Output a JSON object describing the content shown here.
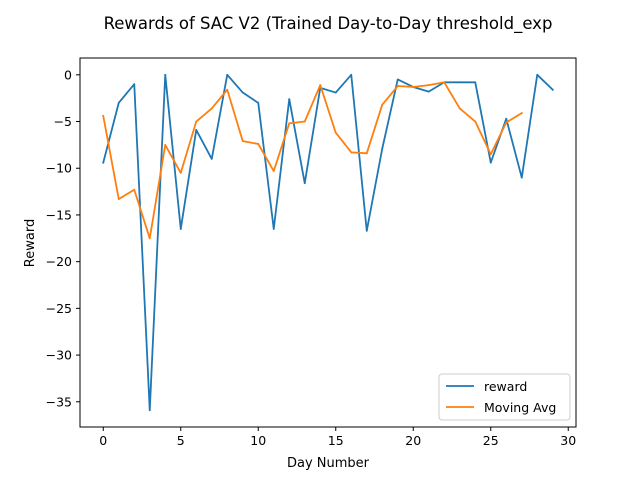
{
  "chart_data": {
    "type": "line",
    "title": "Rewards of SAC V2 (Trained Day-to-Day threshold_exp",
    "xlabel": "Day Number",
    "ylabel": "Reward",
    "xlim": [
      -1.5,
      30.5
    ],
    "ylim": [
      -37.7,
      1.8
    ],
    "xticks": [
      0,
      5,
      10,
      15,
      20,
      25,
      30
    ],
    "yticks": [
      0,
      -5,
      -10,
      -15,
      -20,
      -25,
      -30,
      -35
    ],
    "xtick_labels": [
      "0",
      "5",
      "10",
      "15",
      "20",
      "25",
      "30"
    ],
    "ytick_labels": [
      "0",
      "−5",
      "−10",
      "−15",
      "−20",
      "−25",
      "−30",
      "−35"
    ],
    "grid": false,
    "legend_position": "lower-right",
    "series": [
      {
        "name": "reward",
        "color": "#1f77b4",
        "x": [
          0,
          1,
          2,
          3,
          4,
          5,
          6,
          7,
          8,
          9,
          10,
          11,
          12,
          13,
          14,
          15,
          16,
          17,
          18,
          19,
          20,
          21,
          22,
          23,
          24,
          25,
          26,
          27,
          28,
          29
        ],
        "values": [
          -9.4,
          -3.0,
          -1.0,
          -35.9,
          0.0,
          -16.5,
          -5.9,
          -9.0,
          0.0,
          -1.9,
          -3.0,
          -16.5,
          -2.6,
          -11.6,
          -1.4,
          -1.9,
          0.0,
          -16.7,
          -7.9,
          -0.5,
          -1.3,
          -1.8,
          -0.8,
          -0.8,
          -0.8,
          -9.4,
          -4.7,
          -11.0,
          0.0,
          -1.6
        ]
      },
      {
        "name": "Moving Avg",
        "color": "#ff7f0e",
        "x": [
          0,
          1,
          2,
          3,
          4,
          5,
          6,
          7,
          8,
          9,
          10,
          11,
          12,
          13,
          14,
          15,
          16,
          17,
          18,
          19,
          20,
          21,
          22,
          23,
          24,
          25,
          26,
          27
        ],
        "values": [
          -4.4,
          -13.3,
          -12.3,
          -17.5,
          -7.5,
          -10.5,
          -5.0,
          -3.6,
          -1.6,
          -7.1,
          -7.4,
          -10.3,
          -5.2,
          -5.0,
          -1.1,
          -6.2,
          -8.3,
          -8.4,
          -3.2,
          -1.2,
          -1.3,
          -1.1,
          -0.8,
          -3.6,
          -5.0,
          -8.5,
          -5.1,
          -4.1
        ]
      }
    ]
  }
}
